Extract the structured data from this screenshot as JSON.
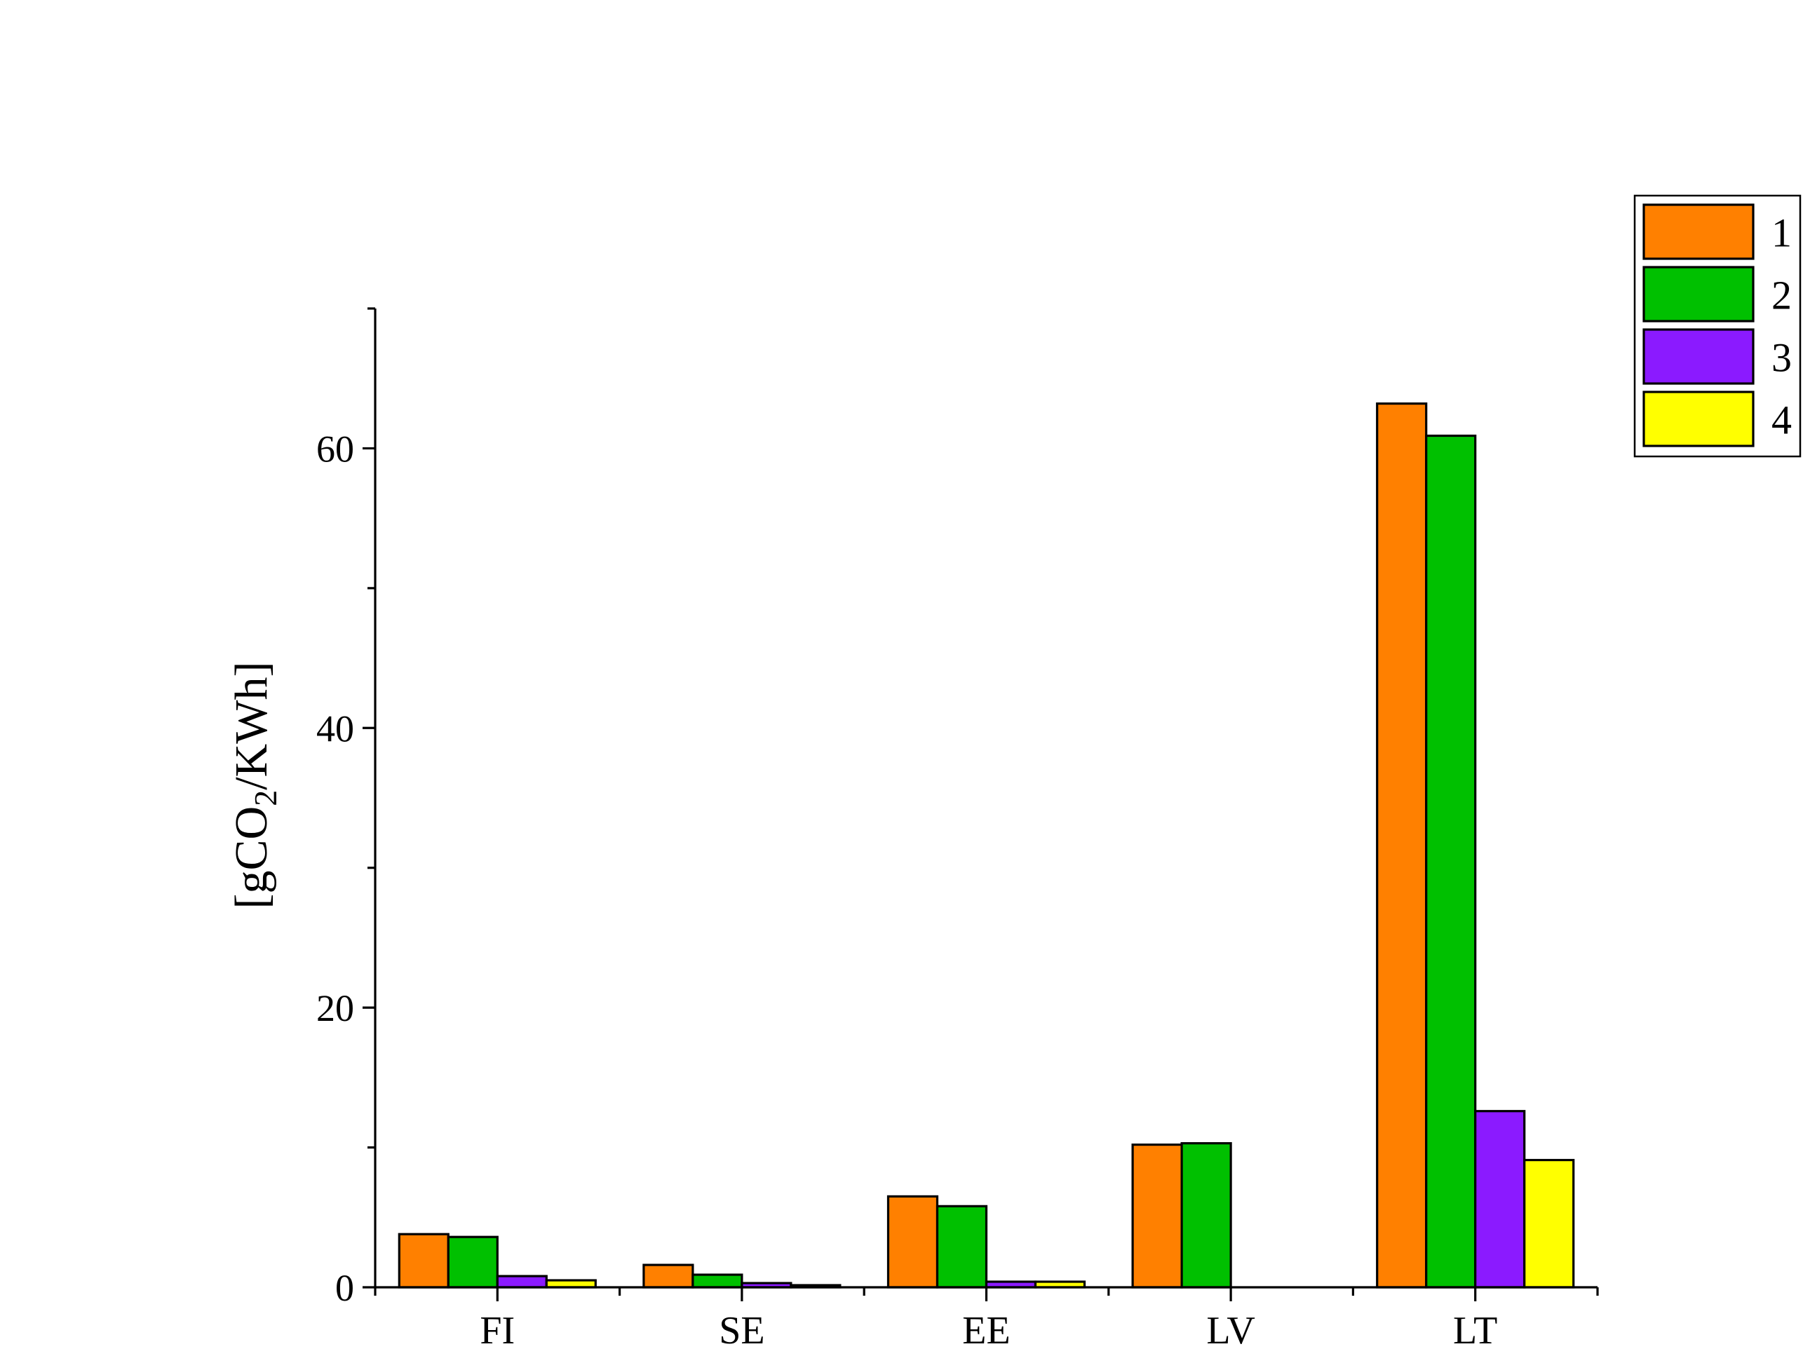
{
  "chart_data": {
    "type": "bar",
    "title": "",
    "xlabel": "",
    "ylabel": "[gCO2/KWh]",
    "ylabel_parts": {
      "before": "[gCO",
      "sub": "2",
      "after": "/KWh]"
    },
    "categories": [
      "FI",
      "SE",
      "EE",
      "LV",
      "LT"
    ],
    "series": [
      {
        "name": "1",
        "color": "#FF8000",
        "values": [
          3.8,
          1.6,
          6.5,
          10.2,
          63.2
        ]
      },
      {
        "name": "2",
        "color": "#00C000",
        "values": [
          3.6,
          0.9,
          5.8,
          10.3,
          60.9
        ]
      },
      {
        "name": "3",
        "color": "#8B1AFF",
        "values": [
          0.8,
          0.3,
          0.4,
          0.0,
          12.6
        ]
      },
      {
        "name": "4",
        "color": "#FFFF00",
        "values": [
          0.5,
          0.15,
          0.4,
          0.0,
          9.1
        ]
      }
    ],
    "ylim": [
      0,
      70
    ],
    "yticks_major": [
      0,
      20,
      40,
      60
    ],
    "yticks_minor": [
      10,
      30,
      50,
      70
    ],
    "legend_position": "top-right",
    "grid": false
  }
}
